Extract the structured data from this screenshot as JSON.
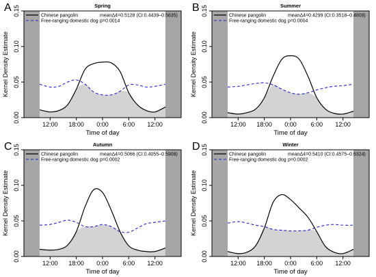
{
  "chart_data": [
    {
      "type": "line",
      "panel_letter": "A",
      "title": "Spring",
      "xlabel": "Time of day",
      "ylabel": "Kernel Density Estimate",
      "xlim": [
        -9,
        9
      ],
      "ylim": [
        0,
        0.15
      ],
      "x_ticks": [
        -6,
        -3,
        0,
        3,
        6
      ],
      "x_tick_labels": [
        "12:00",
        "18:00",
        "0:00",
        "6:00",
        "12:00"
      ],
      "y_ticks": [
        0,
        0.05,
        0.1,
        0.15
      ],
      "y_tick_labels": [
        "0.00",
        "0.05",
        "0.10",
        "0.15"
      ],
      "night_shading": [
        [
          -9,
          -7.2
        ],
        [
          7.2,
          9
        ]
      ],
      "overlap_shaded": true,
      "legend": {
        "position": "top-left",
        "entries": [
          "Chinese pangolin",
          "Free-ranging domestic dog"
        ]
      },
      "stats": [
        "meanΔ4=0.5128 (CI:0.4439–0.5635)",
        "p=0.0014"
      ],
      "x": [
        -7.2,
        -6,
        -5,
        -4,
        -3,
        -2,
        -1,
        0,
        1,
        2,
        3,
        4,
        5,
        6,
        7.2
      ],
      "series": [
        {
          "name": "Chinese pangolin",
          "values": [
            0.011,
            0.008,
            0.01,
            0.018,
            0.04,
            0.068,
            0.076,
            0.078,
            0.077,
            0.065,
            0.035,
            0.018,
            0.01,
            0.008,
            0.015
          ]
        },
        {
          "name": "Free-ranging domestic dog",
          "values": [
            0.047,
            0.043,
            0.044,
            0.05,
            0.053,
            0.047,
            0.036,
            0.032,
            0.032,
            0.037,
            0.046,
            0.046,
            0.043,
            0.044,
            0.047
          ]
        }
      ]
    },
    {
      "type": "line",
      "panel_letter": "B",
      "title": "Summer",
      "xlabel": "Time of day",
      "ylabel": "Kernel Density Estimate",
      "xlim": [
        -9,
        9
      ],
      "ylim": [
        0,
        0.15
      ],
      "x_ticks": [
        -6,
        -3,
        0,
        3,
        6
      ],
      "x_tick_labels": [
        "12:00",
        "18:00",
        "0:00",
        "6:00",
        "12:00"
      ],
      "y_ticks": [
        0,
        0.05,
        0.1,
        0.15
      ],
      "y_tick_labels": [
        "0.00",
        "0.05",
        "0.10",
        "0.15"
      ],
      "night_shading": [
        [
          -9,
          -7.2
        ],
        [
          7.2,
          9
        ]
      ],
      "overlap_shaded": true,
      "legend": {
        "position": "top-left",
        "entries": [
          "Chinese pangolin",
          "Free-ranging domestic dog"
        ]
      },
      "stats": [
        "meanΔ4=0.4299 (CI:0.3518–0.4809)",
        "p=0.0004"
      ],
      "x": [
        -7.2,
        -6,
        -5,
        -4,
        -3,
        -2,
        -1,
        0,
        1,
        2,
        3,
        4,
        5,
        6,
        7.2
      ],
      "series": [
        {
          "name": "Chinese pangolin",
          "values": [
            0.007,
            0.005,
            0.007,
            0.012,
            0.028,
            0.058,
            0.082,
            0.087,
            0.082,
            0.058,
            0.028,
            0.012,
            0.006,
            0.005,
            0.009
          ]
        },
        {
          "name": "Free-ranging domestic dog",
          "values": [
            0.043,
            0.044,
            0.046,
            0.048,
            0.049,
            0.046,
            0.04,
            0.035,
            0.033,
            0.035,
            0.039,
            0.042,
            0.044,
            0.045,
            0.047
          ]
        }
      ]
    },
    {
      "type": "line",
      "panel_letter": "C",
      "title": "Autumn",
      "xlabel": "Time of day",
      "ylabel": "Kernel Density Estimate",
      "xlim": [
        -9,
        9
      ],
      "ylim": [
        0,
        0.15
      ],
      "x_ticks": [
        -6,
        -3,
        0,
        3,
        6
      ],
      "x_tick_labels": [
        "12:00",
        "18:00",
        "0:00",
        "6:00",
        "12:00"
      ],
      "y_ticks": [
        0,
        0.05,
        0.1,
        0.15
      ],
      "y_tick_labels": [
        "0.00",
        "0.05",
        "0.10",
        "0.15"
      ],
      "night_shading": [
        [
          -9,
          -7.2
        ],
        [
          7.2,
          9
        ]
      ],
      "overlap_shaded": true,
      "legend": {
        "position": "top-left",
        "entries": [
          "Chinese pangolin",
          "Free-ranging domestic dog"
        ]
      },
      "stats": [
        "meanΔ4=0.5066 (CI:0.4055–0.5908)",
        "p=0.0002"
      ],
      "x": [
        -7.2,
        -6,
        -5,
        -4,
        -3,
        -2,
        -1,
        0,
        1,
        2,
        3,
        4,
        5,
        6,
        7.2
      ],
      "series": [
        {
          "name": "Chinese pangolin",
          "values": [
            0.01,
            0.009,
            0.01,
            0.016,
            0.035,
            0.07,
            0.094,
            0.09,
            0.065,
            0.035,
            0.015,
            0.009,
            0.007,
            0.007,
            0.012
          ]
        },
        {
          "name": "Free-ranging domestic dog",
          "values": [
            0.044,
            0.045,
            0.048,
            0.051,
            0.048,
            0.042,
            0.042,
            0.045,
            0.042,
            0.035,
            0.034,
            0.04,
            0.046,
            0.048,
            0.05
          ]
        }
      ]
    },
    {
      "type": "line",
      "panel_letter": "D",
      "title": "Winter",
      "xlabel": "Time of day",
      "ylabel": "Kernel Density Estimate",
      "xlim": [
        -9,
        9
      ],
      "ylim": [
        0,
        0.15
      ],
      "x_ticks": [
        -6,
        -3,
        0,
        3,
        6
      ],
      "x_tick_labels": [
        "12:00",
        "18:00",
        "0:00",
        "6:00",
        "12:00"
      ],
      "y_ticks": [
        0,
        0.05,
        0.1,
        0.15
      ],
      "y_tick_labels": [
        "0.00",
        "0.05",
        "0.10",
        "0.15"
      ],
      "night_shading": [
        [
          -9,
          -7.2
        ],
        [
          7.2,
          9
        ]
      ],
      "overlap_shaded": true,
      "legend": {
        "position": "top-left",
        "entries": [
          "Chinese pangolin",
          "Free-ranging domestic dog"
        ]
      },
      "stats": [
        "meanΔ4=0.5410 (CI:0.4575–0.6324)",
        "p=0.0002"
      ],
      "x": [
        -7.2,
        -6,
        -5,
        -4,
        -3,
        -2,
        -1,
        0,
        1,
        2,
        3,
        4,
        5,
        6,
        7.2
      ],
      "series": [
        {
          "name": "Chinese pangolin",
          "values": [
            0.007,
            0.004,
            0.006,
            0.015,
            0.04,
            0.076,
            0.087,
            0.08,
            0.068,
            0.055,
            0.035,
            0.014,
            0.006,
            0.004,
            0.01
          ]
        },
        {
          "name": "Free-ranging domestic dog",
          "values": [
            0.047,
            0.049,
            0.047,
            0.044,
            0.042,
            0.038,
            0.037,
            0.036,
            0.036,
            0.037,
            0.041,
            0.044,
            0.045,
            0.044,
            0.044
          ]
        }
      ]
    }
  ],
  "colors": {
    "pangolin_line": "#000000",
    "dog_line": "#2222cc",
    "overlap_fill": "#d3d3d3",
    "night_band": "#a6a6a6"
  }
}
